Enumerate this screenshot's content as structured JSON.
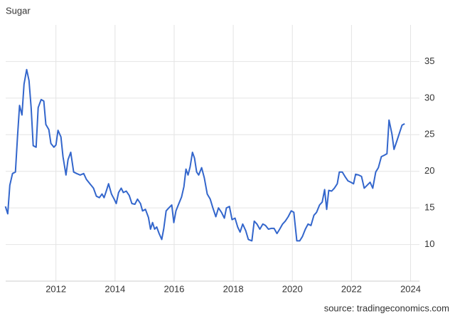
{
  "chart_data": {
    "type": "line",
    "title": "Sugar",
    "source": "source: tradingeconomics.com",
    "color": "#3366cc",
    "grid": true,
    "x": [
      2010.29,
      2010.37,
      2010.44,
      2010.53,
      2010.63,
      2010.7,
      2010.77,
      2010.85,
      2010.92,
      2011.01,
      2011.09,
      2011.16,
      2011.23,
      2011.33,
      2011.4,
      2011.5,
      2011.59,
      2011.66,
      2011.76,
      2011.83,
      2011.93,
      2012.0,
      2012.07,
      2012.17,
      2012.24,
      2012.34,
      2012.41,
      2012.5,
      2012.6,
      2012.7,
      2012.82,
      2012.94,
      2013.03,
      2013.15,
      2013.27,
      2013.37,
      2013.47,
      2013.56,
      2013.63,
      2013.71,
      2013.78,
      2013.88,
      2013.97,
      2014.04,
      2014.12,
      2014.21,
      2014.28,
      2014.38,
      2014.48,
      2014.57,
      2014.67,
      2014.76,
      2014.86,
      2014.93,
      2015.03,
      2015.13,
      2015.2,
      2015.27,
      2015.34,
      2015.41,
      2015.49,
      2015.58,
      2015.65,
      2015.73,
      2015.82,
      2015.92,
      2015.99,
      2016.06,
      2016.16,
      2016.25,
      2016.33,
      2016.4,
      2016.47,
      2016.54,
      2016.62,
      2016.69,
      2016.76,
      2016.83,
      2016.93,
      2017.02,
      2017.12,
      2017.22,
      2017.31,
      2017.41,
      2017.5,
      2017.6,
      2017.7,
      2017.77,
      2017.87,
      2017.96,
      2018.06,
      2018.15,
      2018.23,
      2018.32,
      2018.42,
      2018.51,
      2018.63,
      2018.71,
      2018.8,
      2018.9,
      2019.0,
      2019.09,
      2019.19,
      2019.28,
      2019.38,
      2019.48,
      2019.57,
      2019.67,
      2019.76,
      2019.86,
      2019.96,
      2020.05,
      2020.15,
      2020.25,
      2020.34,
      2020.44,
      2020.53,
      2020.63,
      2020.73,
      2020.82,
      2020.92,
      2021.01,
      2021.09,
      2021.16,
      2021.23,
      2021.33,
      2021.42,
      2021.52,
      2021.59,
      2021.69,
      2021.78,
      2021.88,
      2021.98,
      2022.07,
      2022.14,
      2022.24,
      2022.34,
      2022.43,
      2022.53,
      2022.63,
      2022.72,
      2022.82,
      2022.91,
      2023.01,
      2023.11,
      2023.2,
      2023.27,
      2023.37,
      2023.44,
      2023.54,
      2023.63,
      2023.71,
      2023.8
    ],
    "values": [
      15.2,
      14.2,
      18.1,
      19.7,
      19.9,
      24.7,
      29.0,
      27.7,
      31.9,
      33.9,
      32.4,
      28.7,
      23.5,
      23.3,
      28.7,
      29.8,
      29.6,
      26.4,
      25.7,
      23.8,
      23.3,
      23.6,
      25.6,
      24.7,
      22.0,
      19.5,
      21.6,
      22.6,
      19.9,
      19.7,
      19.5,
      19.7,
      18.9,
      18.3,
      17.7,
      16.6,
      16.4,
      16.9,
      16.4,
      17.4,
      18.3,
      16.9,
      16.2,
      15.6,
      17.1,
      17.7,
      17.1,
      17.3,
      16.7,
      15.6,
      15.5,
      16.2,
      15.6,
      14.6,
      14.8,
      13.7,
      12.1,
      13.0,
      12.1,
      12.4,
      11.5,
      10.7,
      12.2,
      14.6,
      15.0,
      15.4,
      13.0,
      14.6,
      15.6,
      16.5,
      17.9,
      20.3,
      19.5,
      20.6,
      22.6,
      21.8,
      19.9,
      19.5,
      20.5,
      19.1,
      16.9,
      16.2,
      15.0,
      13.8,
      15.0,
      14.4,
      13.6,
      15.0,
      15.2,
      13.4,
      13.6,
      12.4,
      11.7,
      12.8,
      11.9,
      10.7,
      10.5,
      13.2,
      12.8,
      12.1,
      12.8,
      12.6,
      12.1,
      12.2,
      12.2,
      11.5,
      12.1,
      12.8,
      13.2,
      13.8,
      14.6,
      14.4,
      10.5,
      10.5,
      11.1,
      12.1,
      12.8,
      12.6,
      14.0,
      14.4,
      15.4,
      15.8,
      17.5,
      14.8,
      17.4,
      17.3,
      17.7,
      18.3,
      19.9,
      19.9,
      19.3,
      18.7,
      18.5,
      18.3,
      19.6,
      19.5,
      19.3,
      17.7,
      18.1,
      18.5,
      17.7,
      19.9,
      20.5,
      22.0,
      22.2,
      22.4,
      27.0,
      25.1,
      23.0,
      24.2,
      25.3,
      26.3,
      26.5
    ],
    "xlim": [
      2010.3,
      2024.3
    ],
    "xticks": [
      2012,
      2014,
      2016,
      2018,
      2020,
      2022,
      2024
    ],
    "ylim": [
      5,
      40
    ],
    "yticks": [
      10,
      15,
      20,
      25,
      30,
      35
    ]
  }
}
